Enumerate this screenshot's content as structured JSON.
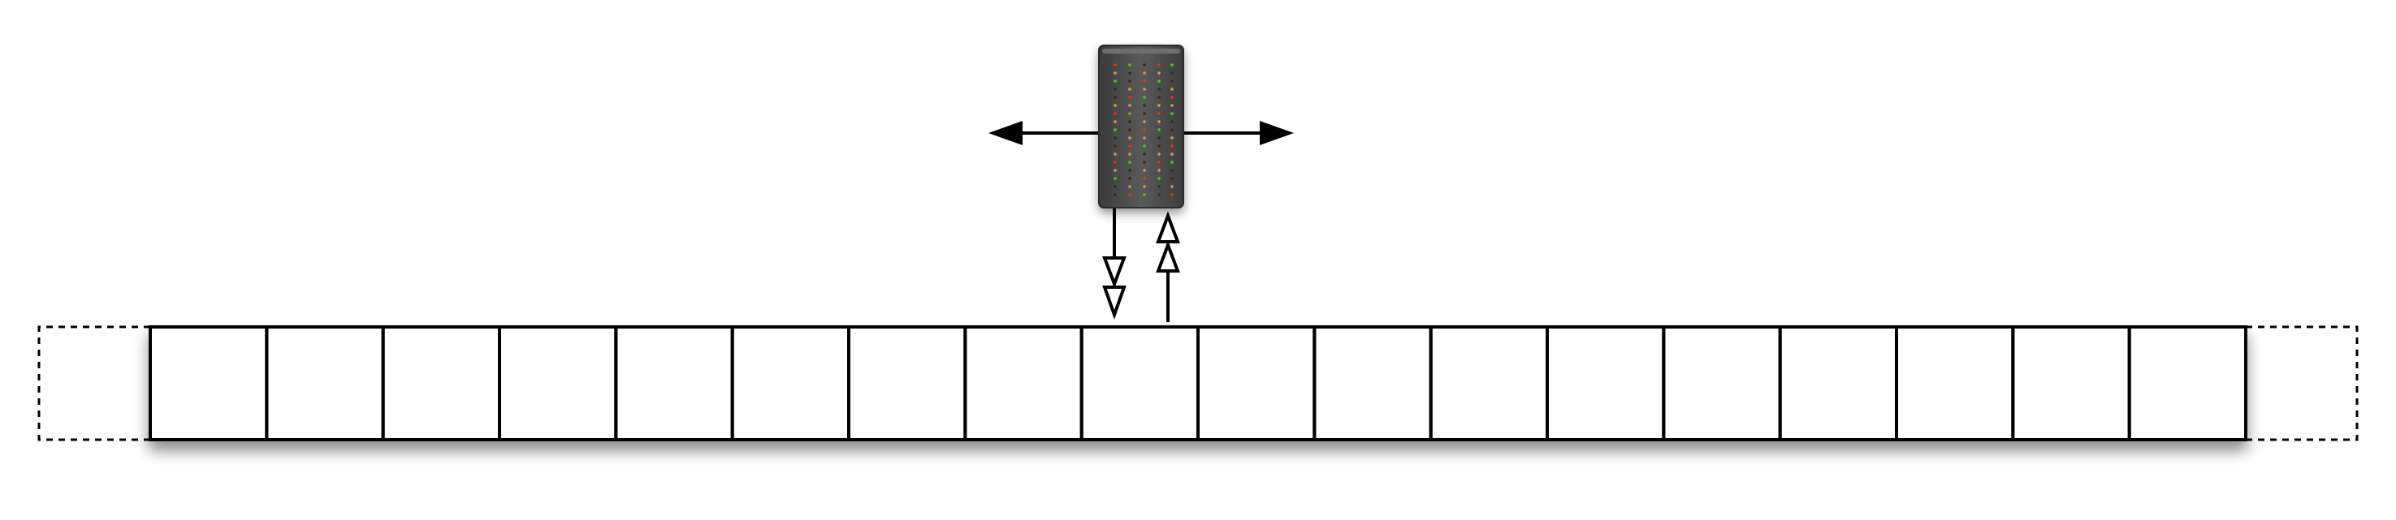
{
  "diagram": {
    "subject": "turing-machine-tape",
    "tape": {
      "visible_cell_count": 18,
      "extends_left": true,
      "extends_right": true,
      "head_cell_index": 8,
      "cell_values": [
        "",
        "",
        "",
        "",
        "",
        "",
        "",
        "",
        "",
        "",
        "",
        "",
        "",
        "",
        "",
        "",
        "",
        ""
      ]
    },
    "head": {
      "moves": [
        "left",
        "right"
      ],
      "reads_from_tape": true,
      "writes_to_tape": true
    },
    "colors": {
      "background": "#ffffff",
      "stroke": "#000000",
      "head_body": "#4a4a4a",
      "head_body_light": "#6a6a6a",
      "led_red": "#d23a2a",
      "led_amber": "#d8a23a",
      "led_green": "#6fb24a",
      "led_dim": "#2a2a2a"
    }
  }
}
